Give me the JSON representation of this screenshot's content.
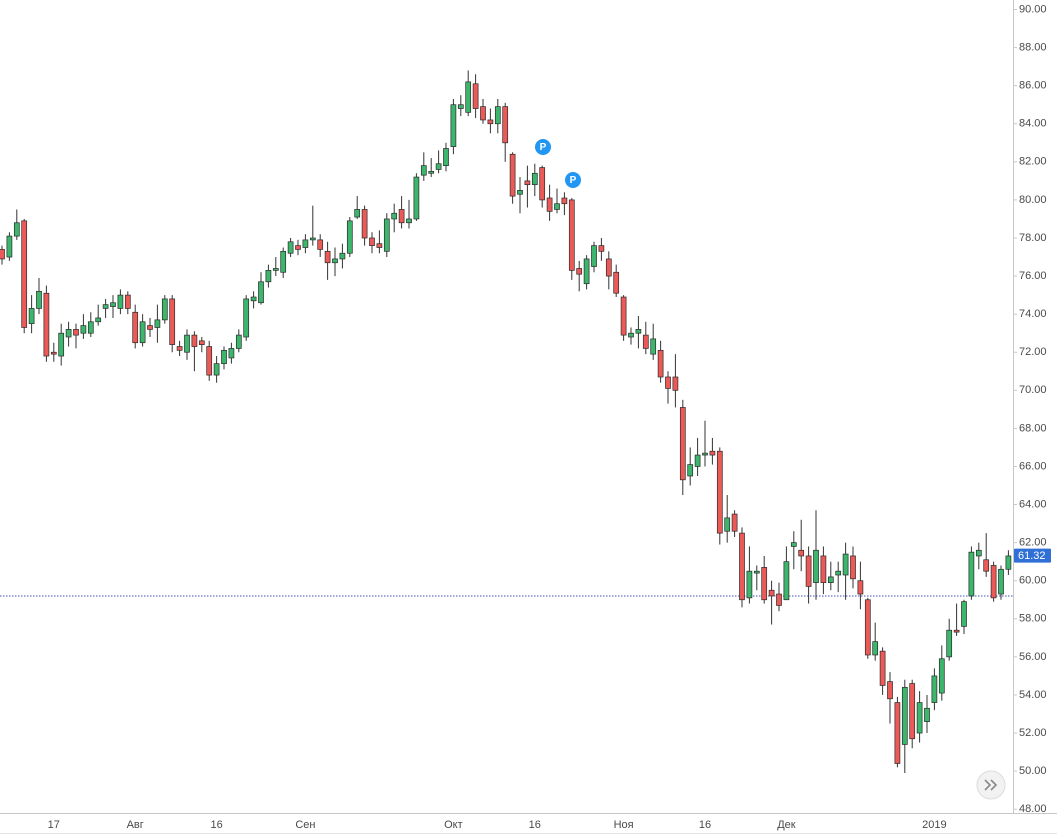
{
  "chart_data": {
    "type": "candlestick",
    "categories": [
      null,
      null,
      null,
      null,
      null,
      null,
      null,
      "17",
      null,
      null,
      null,
      null,
      null,
      null,
      null,
      null,
      null,
      null,
      "Авг",
      null,
      null,
      null,
      null,
      null,
      null,
      null,
      null,
      null,
      null,
      "16",
      null,
      null,
      null,
      null,
      null,
      null,
      null,
      null,
      null,
      null,
      null,
      "Сен",
      null,
      null,
      null,
      null,
      null,
      null,
      null,
      null,
      null,
      null,
      null,
      null,
      null,
      null,
      null,
      null,
      null,
      null,
      null,
      "Окт",
      null,
      null,
      null,
      null,
      null,
      null,
      null,
      null,
      null,
      null,
      "16",
      null,
      null,
      null,
      null,
      null,
      null,
      null,
      null,
      null,
      null,
      null,
      "Ноя",
      null,
      null,
      null,
      null,
      null,
      null,
      null,
      null,
      null,
      null,
      "16",
      null,
      null,
      null,
      null,
      null,
      null,
      null,
      null,
      null,
      null,
      "Дек",
      null,
      null,
      null,
      null,
      null,
      null,
      null,
      null,
      null,
      null,
      null,
      null,
      null,
      null,
      null,
      null,
      null,
      null,
      null,
      "2019",
      null,
      null,
      null,
      null,
      null,
      null,
      null,
      null,
      null,
      null
    ],
    "open": [
      77.4,
      77.0,
      78.1,
      78.9,
      73.5,
      74.3,
      75.1,
      72.0,
      71.8,
      72.8,
      73.2,
      73.0,
      73.0,
      73.6,
      74.3,
      74.4,
      74.3,
      75.0,
      74.1,
      72.5,
      73.4,
      73.3,
      73.7,
      74.8,
      72.3,
      72.0,
      72.9,
      72.6,
      72.3,
      70.8,
      71.4,
      71.7,
      72.2,
      72.8,
      74.7,
      74.6,
      75.7,
      76.3,
      76.2,
      77.2,
      77.6,
      77.5,
      77.9,
      77.9,
      77.3,
      76.7,
      76.9,
      77.2,
      79.1,
      79.5,
      78.0,
      77.7,
      77.3,
      79.0,
      79.5,
      78.8,
      79.0,
      81.3,
      81.4,
      81.6,
      81.8,
      82.8,
      84.8,
      84.6,
      86.1,
      84.9,
      84.2,
      84.0,
      84.9,
      82.4,
      80.3,
      81.0,
      80.8,
      81.7,
      80.1,
      79.5,
      80.1,
      80.0,
      76.4,
      75.6,
      76.5,
      77.6,
      76.9,
      76.2,
      74.9,
      72.8,
      73.0,
      72.9,
      71.9,
      72.1,
      70.7,
      70.7,
      69.1,
      65.5,
      66.0,
      66.6,
      66.8,
      66.8,
      62.6,
      63.5,
      62.5,
      59.1,
      60.4,
      60.7,
      59.5,
      59.3,
      59.0,
      61.8,
      61.6,
      61.3,
      59.9,
      61.3,
      59.9,
      60.3,
      60.3,
      61.3,
      60.0,
      59.0,
      56.1,
      56.3,
      54.7,
      53.6,
      51.4,
      54.6,
      52.0,
      52.6,
      53.6,
      54.1,
      56.0,
      57.4,
      57.6,
      59.2,
      61.3,
      61.1,
      60.8,
      59.3,
      60.6
    ],
    "high": [
      77.6,
      78.3,
      79.5,
      79.0,
      75.0,
      75.9,
      75.5,
      72.5,
      73.5,
      73.6,
      73.5,
      74.0,
      74.1,
      74.5,
      74.8,
      75.0,
      75.3,
      75.2,
      74.5,
      74.0,
      73.8,
      74.5,
      75.0,
      75.0,
      72.6,
      73.2,
      73.1,
      72.8,
      72.6,
      71.8,
      72.3,
      72.5,
      73.2,
      75.0,
      75.2,
      76.2,
      76.6,
      77.0,
      77.5,
      78.0,
      77.9,
      78.2,
      79.7,
      78.2,
      77.8,
      77.5,
      77.7,
      79.1,
      80.2,
      79.7,
      78.3,
      78.4,
      79.3,
      79.8,
      80.2,
      80.0,
      81.4,
      82.5,
      82.2,
      82.6,
      83.0,
      85.3,
      85.5,
      86.8,
      86.6,
      85.3,
      84.8,
      85.3,
      85.1,
      82.5,
      81.2,
      81.8,
      81.9,
      81.8,
      80.8,
      80.6,
      80.4,
      80.1,
      76.8,
      77.1,
      77.8,
      78.0,
      77.3,
      76.6,
      75.0,
      73.3,
      73.9,
      73.6,
      73.5,
      72.6,
      71.0,
      71.9,
      69.5,
      67.0,
      67.5,
      68.4,
      67.5,
      67.0,
      64.5,
      63.7,
      62.8,
      61.8,
      60.8,
      61.3,
      60.0,
      59.9,
      61.8,
      62.6,
      63.2,
      61.8,
      63.7,
      61.8,
      61.0,
      61.0,
      62.0,
      61.8,
      61.0,
      59.1,
      57.8,
      56.5,
      55.2,
      53.9,
      54.8,
      54.8,
      54.2,
      54.0,
      55.4,
      56.6,
      58.0,
      58.8,
      59.0,
      61.8,
      62.0,
      62.5,
      61.0,
      60.8,
      61.6
    ],
    "low": [
      76.6,
      76.8,
      77.9,
      73.0,
      73.0,
      74.0,
      71.5,
      71.5,
      71.3,
      72.3,
      72.2,
      72.7,
      72.8,
      73.4,
      73.8,
      73.8,
      74.0,
      74.0,
      72.2,
      72.3,
      72.8,
      72.5,
      73.5,
      72.0,
      71.8,
      71.6,
      71.0,
      72.0,
      70.5,
      70.4,
      71.1,
      71.4,
      72.0,
      72.6,
      74.3,
      74.5,
      75.4,
      76.0,
      75.9,
      77.0,
      77.1,
      77.2,
      77.6,
      77.0,
      75.8,
      76.0,
      76.4,
      77.0,
      79.0,
      77.6,
      77.2,
      77.2,
      77.0,
      78.3,
      78.5,
      78.5,
      78.9,
      81.0,
      81.2,
      81.4,
      81.5,
      82.4,
      84.4,
      84.4,
      84.3,
      84.0,
      83.5,
      83.5,
      82.0,
      79.8,
      79.3,
      79.6,
      80.2,
      79.6,
      78.9,
      79.3,
      79.2,
      75.8,
      75.2,
      75.3,
      76.2,
      76.8,
      75.3,
      74.9,
      72.6,
      72.4,
      72.2,
      71.9,
      71.6,
      70.4,
      69.3,
      69.1,
      64.5,
      65.0,
      65.5,
      66.0,
      66.1,
      61.9,
      62.0,
      62.3,
      58.6,
      58.8,
      59.5,
      58.8,
      57.7,
      58.4,
      59.0,
      60.6,
      60.5,
      58.8,
      59.0,
      59.3,
      59.5,
      59.4,
      59.0,
      59.6,
      58.5,
      55.9,
      55.8,
      54.0,
      52.5,
      50.2,
      49.9,
      51.2,
      51.5,
      52.0,
      53.2,
      53.7,
      55.8,
      57.1,
      57.2,
      59.0,
      60.6,
      60.2,
      58.9,
      59.0,
      60.3
    ],
    "close": [
      76.9,
      78.1,
      78.8,
      73.3,
      74.3,
      75.2,
      71.8,
      71.9,
      73.0,
      73.2,
      72.9,
      73.4,
      73.6,
      73.8,
      74.5,
      74.6,
      75.0,
      74.3,
      72.5,
      73.6,
      73.2,
      73.7,
      74.8,
      72.4,
      72.1,
      72.9,
      72.3,
      72.4,
      70.8,
      71.4,
      72.1,
      72.2,
      72.9,
      74.8,
      74.9,
      75.7,
      76.3,
      76.4,
      77.3,
      77.8,
      77.4,
      77.9,
      78.0,
      77.4,
      76.7,
      76.9,
      77.2,
      78.9,
      79.5,
      78.0,
      77.6,
      77.5,
      79.0,
      79.3,
      78.8,
      79.0,
      81.2,
      81.8,
      81.5,
      81.9,
      82.7,
      85.0,
      85.0,
      86.2,
      84.8,
      84.2,
      84.0,
      84.9,
      83.0,
      80.2,
      80.5,
      80.8,
      81.4,
      80.0,
      79.4,
      79.8,
      79.8,
      76.3,
      76.1,
      76.9,
      77.6,
      77.3,
      76.0,
      75.1,
      72.9,
      73.0,
      73.2,
      72.2,
      72.7,
      70.7,
      70.1,
      70.0,
      65.3,
      66.1,
      66.6,
      66.7,
      66.6,
      62.5,
      63.3,
      62.6,
      59.0,
      60.5,
      60.5,
      59.0,
      59.2,
      58.7,
      61.0,
      62.0,
      61.3,
      59.7,
      61.6,
      59.9,
      60.2,
      60.5,
      61.4,
      60.1,
      59.3,
      56.1,
      56.8,
      54.5,
      53.8,
      50.4,
      54.4,
      51.7,
      53.6,
      53.3,
      55.0,
      55.9,
      57.4,
      57.3,
      58.9,
      61.5,
      61.6,
      60.5,
      59.1,
      60.6,
      61.3
    ],
    "up_color": "#3cb66c",
    "down_color": "#ec5a57",
    "ylim": [
      47.8,
      90.5
    ],
    "yticks": [
      {
        "value": 48,
        "label": "48.00"
      },
      {
        "value": 50,
        "label": "50.00"
      },
      {
        "value": 52,
        "label": "52.00"
      },
      {
        "value": 54,
        "label": "54.00"
      },
      {
        "value": 56,
        "label": "56.00"
      },
      {
        "value": 58,
        "label": "58.00"
      },
      {
        "value": 60,
        "label": "60.00"
      },
      {
        "value": 62,
        "label": "62.00"
      },
      {
        "value": 64,
        "label": "64.00"
      },
      {
        "value": 66,
        "label": "66.00"
      },
      {
        "value": 68,
        "label": "68.00"
      },
      {
        "value": 70,
        "label": "70.00"
      },
      {
        "value": 72,
        "label": "72.00"
      },
      {
        "value": 74,
        "label": "74.00"
      },
      {
        "value": 76,
        "label": "76.00"
      },
      {
        "value": 78,
        "label": "78.00"
      },
      {
        "value": 80,
        "label": "80.00"
      },
      {
        "value": 82,
        "label": "82.00"
      },
      {
        "value": 84,
        "label": "84.00"
      },
      {
        "value": 86,
        "label": "86.00"
      },
      {
        "value": 88,
        "label": "88.00"
      },
      {
        "value": 90,
        "label": "90.00"
      }
    ],
    "last_price": 61.32,
    "price_line": 59.2,
    "markers": [
      "P",
      "P"
    ],
    "grid": false
  }
}
